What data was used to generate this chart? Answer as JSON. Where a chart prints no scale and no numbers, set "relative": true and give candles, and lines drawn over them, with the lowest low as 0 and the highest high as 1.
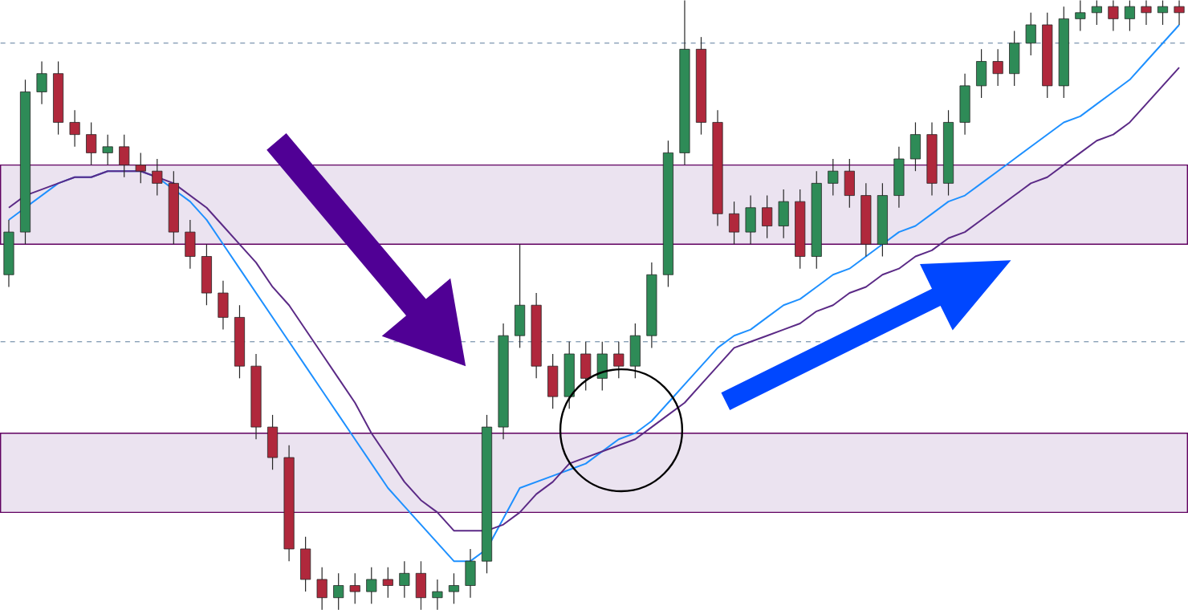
{
  "chart_data": {
    "type": "candlestick",
    "relative": true,
    "categories": [
      null,
      null,
      null,
      null,
      null,
      null,
      null,
      null,
      null,
      null,
      null,
      null,
      null,
      null,
      null,
      null,
      null,
      null,
      null,
      null,
      null,
      null,
      null,
      null,
      null,
      null,
      null,
      null,
      null,
      null,
      null,
      null,
      null,
      null,
      null,
      null,
      null,
      null,
      null,
      null,
      null,
      null,
      null,
      null,
      null,
      null,
      null,
      null,
      null,
      null,
      null,
      null,
      null,
      null,
      null,
      null,
      null,
      null,
      null,
      null,
      null,
      null,
      null,
      null,
      null,
      null,
      null,
      null,
      null,
      null,
      null,
      null
    ],
    "ohlc": [
      [
        0.55,
        0.64,
        0.53,
        0.62
      ],
      [
        0.62,
        0.87,
        0.6,
        0.85
      ],
      [
        0.85,
        0.9,
        0.83,
        0.88
      ],
      [
        0.88,
        0.9,
        0.78,
        0.8
      ],
      [
        0.8,
        0.82,
        0.76,
        0.78
      ],
      [
        0.78,
        0.8,
        0.73,
        0.75
      ],
      [
        0.75,
        0.78,
        0.73,
        0.76
      ],
      [
        0.76,
        0.78,
        0.71,
        0.73
      ],
      [
        0.73,
        0.75,
        0.7,
        0.72
      ],
      [
        0.72,
        0.74,
        0.68,
        0.7
      ],
      [
        0.7,
        0.72,
        0.6,
        0.62
      ],
      [
        0.62,
        0.64,
        0.56,
        0.58
      ],
      [
        0.58,
        0.6,
        0.5,
        0.52
      ],
      [
        0.52,
        0.54,
        0.46,
        0.48
      ],
      [
        0.48,
        0.5,
        0.38,
        0.4
      ],
      [
        0.4,
        0.42,
        0.28,
        0.3
      ],
      [
        0.3,
        0.32,
        0.23,
        0.25
      ],
      [
        0.25,
        0.27,
        0.08,
        0.1
      ],
      [
        0.1,
        0.12,
        0.03,
        0.05
      ],
      [
        0.05,
        0.07,
        0.0,
        0.02
      ],
      [
        0.02,
        0.06,
        0.0,
        0.04
      ],
      [
        0.04,
        0.06,
        0.01,
        0.03
      ],
      [
        0.03,
        0.07,
        0.01,
        0.05
      ],
      [
        0.05,
        0.07,
        0.02,
        0.04
      ],
      [
        0.04,
        0.08,
        0.02,
        0.06
      ],
      [
        0.06,
        0.08,
        0.0,
        0.02
      ],
      [
        0.02,
        0.05,
        0.0,
        0.03
      ],
      [
        0.03,
        0.06,
        0.01,
        0.04
      ],
      [
        0.04,
        0.1,
        0.02,
        0.08
      ],
      [
        0.08,
        0.32,
        0.06,
        0.3
      ],
      [
        0.3,
        0.47,
        0.28,
        0.45
      ],
      [
        0.45,
        0.6,
        0.43,
        0.5
      ],
      [
        0.5,
        0.52,
        0.38,
        0.4
      ],
      [
        0.4,
        0.42,
        0.33,
        0.35
      ],
      [
        0.35,
        0.44,
        0.33,
        0.42
      ],
      [
        0.42,
        0.44,
        0.36,
        0.38
      ],
      [
        0.38,
        0.44,
        0.36,
        0.42
      ],
      [
        0.42,
        0.44,
        0.38,
        0.4
      ],
      [
        0.4,
        0.47,
        0.38,
        0.45
      ],
      [
        0.45,
        0.57,
        0.43,
        0.55
      ],
      [
        0.55,
        0.77,
        0.53,
        0.75
      ],
      [
        0.75,
        1.0,
        0.73,
        0.92
      ],
      [
        0.92,
        0.94,
        0.78,
        0.8
      ],
      [
        0.8,
        0.82,
        0.63,
        0.65
      ],
      [
        0.65,
        0.67,
        0.6,
        0.62
      ],
      [
        0.62,
        0.68,
        0.6,
        0.66
      ],
      [
        0.66,
        0.68,
        0.61,
        0.63
      ],
      [
        0.63,
        0.69,
        0.61,
        0.67
      ],
      [
        0.67,
        0.69,
        0.56,
        0.58
      ],
      [
        0.58,
        0.72,
        0.56,
        0.7
      ],
      [
        0.7,
        0.74,
        0.68,
        0.72
      ],
      [
        0.72,
        0.74,
        0.66,
        0.68
      ],
      [
        0.68,
        0.7,
        0.58,
        0.6
      ],
      [
        0.6,
        0.7,
        0.58,
        0.68
      ],
      [
        0.68,
        0.76,
        0.66,
        0.74
      ],
      [
        0.74,
        0.8,
        0.72,
        0.78
      ],
      [
        0.78,
        0.8,
        0.68,
        0.7
      ],
      [
        0.7,
        0.82,
        0.68,
        0.8
      ],
      [
        0.8,
        0.88,
        0.78,
        0.86
      ],
      [
        0.86,
        0.92,
        0.84,
        0.9
      ],
      [
        0.9,
        0.92,
        0.86,
        0.88
      ],
      [
        0.88,
        0.95,
        0.86,
        0.93
      ],
      [
        0.93,
        0.98,
        0.91,
        0.96
      ],
      [
        0.96,
        0.98,
        0.84,
        0.86
      ],
      [
        0.86,
        0.99,
        0.84,
        0.97
      ],
      [
        0.97,
        1.0,
        0.95,
        0.98
      ],
      [
        0.98,
        1.0,
        0.96,
        0.99
      ],
      [
        0.99,
        1.0,
        0.95,
        0.97
      ],
      [
        0.97,
        1.0,
        0.95,
        0.99
      ],
      [
        0.99,
        1.0,
        0.96,
        0.98
      ],
      [
        0.98,
        1.0,
        0.96,
        0.99
      ],
      [
        0.99,
        1.0,
        0.96,
        0.98
      ]
    ],
    "colors": [
      "#2e8b57",
      "#2e8b57",
      "#2e8b57",
      "#b0283c",
      "#b0283c",
      "#b0283c",
      "#2e8b57",
      "#b0283c",
      "#b0283c",
      "#b0283c",
      "#b0283c",
      "#b0283c",
      "#b0283c",
      "#b0283c",
      "#b0283c",
      "#b0283c",
      "#b0283c",
      "#b0283c",
      "#b0283c",
      "#b0283c",
      "#2e8b57",
      "#b0283c",
      "#2e8b57",
      "#b0283c",
      "#2e8b57",
      "#b0283c",
      "#2e8b57",
      "#2e8b57",
      "#2e8b57",
      "#2e8b57",
      "#2e8b57",
      "#2e8b57",
      "#b0283c",
      "#b0283c",
      "#2e8b57",
      "#b0283c",
      "#2e8b57",
      "#b0283c",
      "#2e8b57",
      "#2e8b57",
      "#2e8b57",
      "#2e8b57",
      "#b0283c",
      "#b0283c",
      "#b0283c",
      "#2e8b57",
      "#b0283c",
      "#2e8b57",
      "#b0283c",
      "#2e8b57",
      "#2e8b57",
      "#b0283c",
      "#b0283c",
      "#2e8b57",
      "#2e8b57",
      "#2e8b57",
      "#b0283c",
      "#2e8b57",
      "#2e8b57",
      "#2e8b57",
      "#b0283c",
      "#2e8b57",
      "#2e8b57",
      "#b0283c",
      "#2e8b57",
      "#2e8b57",
      "#2e8b57",
      "#b0283c",
      "#2e8b57",
      "#b0283c",
      "#2e8b57",
      "#b0283c"
    ],
    "series": [
      {
        "type": "line",
        "color": "#1e90ff",
        "values": [
          0.64,
          0.66,
          0.68,
          0.7,
          0.71,
          0.71,
          0.72,
          0.72,
          0.72,
          0.71,
          0.69,
          0.67,
          0.64,
          0.6,
          0.56,
          0.52,
          0.48,
          0.44,
          0.4,
          0.36,
          0.32,
          0.28,
          0.24,
          0.2,
          0.17,
          0.14,
          0.11,
          0.08,
          0.08,
          0.1,
          0.15,
          0.2,
          0.21,
          0.22,
          0.23,
          0.24,
          0.26,
          0.28,
          0.29,
          0.31,
          0.34,
          0.37,
          0.4,
          0.43,
          0.45,
          0.46,
          0.48,
          0.5,
          0.51,
          0.53,
          0.55,
          0.56,
          0.58,
          0.6,
          0.62,
          0.63,
          0.65,
          0.67,
          0.68,
          0.7,
          0.72,
          0.74,
          0.76,
          0.78,
          0.8,
          0.81,
          0.83,
          0.85,
          0.87,
          0.9,
          0.93,
          0.96
        ]
      },
      {
        "type": "line",
        "color": "#5b2a86",
        "values": [
          0.66,
          0.68,
          0.69,
          0.7,
          0.71,
          0.71,
          0.72,
          0.72,
          0.72,
          0.71,
          0.7,
          0.68,
          0.66,
          0.63,
          0.6,
          0.57,
          0.53,
          0.5,
          0.46,
          0.42,
          0.38,
          0.34,
          0.29,
          0.25,
          0.21,
          0.18,
          0.16,
          0.13,
          0.13,
          0.13,
          0.14,
          0.16,
          0.19,
          0.21,
          0.24,
          0.25,
          0.26,
          0.27,
          0.28,
          0.3,
          0.32,
          0.34,
          0.37,
          0.4,
          0.43,
          0.44,
          0.45,
          0.46,
          0.47,
          0.49,
          0.5,
          0.52,
          0.53,
          0.55,
          0.56,
          0.58,
          0.59,
          0.61,
          0.62,
          0.64,
          0.66,
          0.68,
          0.7,
          0.71,
          0.73,
          0.75,
          0.77,
          0.78,
          0.8,
          0.83,
          0.86,
          0.89
        ]
      }
    ],
    "bands": [
      {
        "axis": "y",
        "from": 0.6,
        "to": 0.73,
        "color": "#ebe3f0"
      },
      {
        "axis": "y",
        "from": 0.16,
        "to": 0.29,
        "color": "#ebe3f0"
      }
    ],
    "ref_lines": [
      {
        "axis": "y",
        "value": 0.93,
        "color": "#5a7a9a",
        "line_style": "dashed"
      },
      {
        "axis": "y",
        "value": 0.44,
        "color": "#5a7a9a",
        "line_style": "dashed"
      }
    ]
  }
}
